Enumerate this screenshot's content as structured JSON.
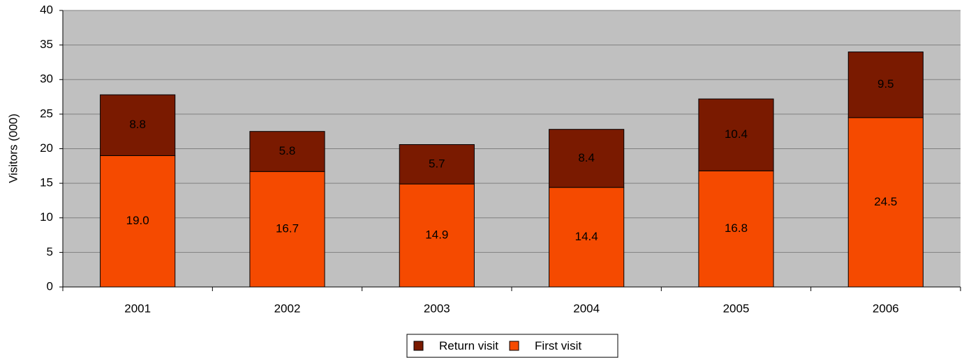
{
  "chart_data": {
    "type": "stacked-bar",
    "y_label": "Visitors (000)",
    "categories": [
      "2001",
      "2002",
      "2003",
      "2004",
      "2005",
      "2006"
    ],
    "series": [
      {
        "name": "First visit",
        "color": "#f54a00",
        "values": [
          19.0,
          16.7,
          14.9,
          14.4,
          16.8,
          24.5
        ],
        "value_labels": [
          "19.0",
          "16.7",
          "14.9",
          "14.4",
          "16.8",
          "24.5"
        ]
      },
      {
        "name": "Return visit",
        "color": "#7a1a00",
        "values": [
          8.8,
          5.8,
          5.7,
          8.4,
          10.4,
          9.5
        ]
      }
    ],
    "ylim": [
      0,
      40
    ],
    "yticks": [
      0,
      5,
      10,
      15,
      20,
      25,
      30,
      35,
      40
    ],
    "grid": true,
    "legend": "bottom"
  }
}
